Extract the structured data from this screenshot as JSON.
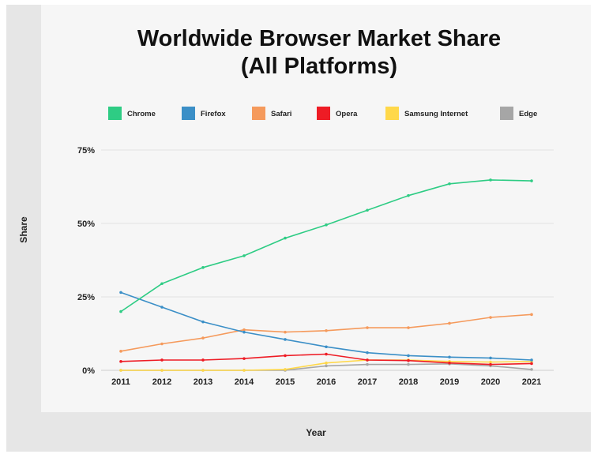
{
  "chart_data": {
    "type": "line",
    "title": [
      "Worldwide Browser Market Share",
      "(All Platforms)"
    ],
    "xlabel": "Year",
    "ylabel": "Share",
    "categories": [
      "2011",
      "2012",
      "2013",
      "2014",
      "2015",
      "2016",
      "2017",
      "2018",
      "2019",
      "2020",
      "2021"
    ],
    "y_ticks": [
      {
        "value": 0,
        "label": "0%"
      },
      {
        "value": 25,
        "label": "25%"
      },
      {
        "value": 50,
        "label": "50%"
      },
      {
        "value": 75,
        "label": "75%"
      }
    ],
    "ylim": [
      0,
      75
    ],
    "legend_position": "top",
    "series": [
      {
        "name": "Chrome",
        "color": "#2ecc84",
        "values": [
          20,
          29.5,
          35,
          39,
          45,
          49.5,
          54.5,
          59.5,
          63.5,
          64.8,
          64.5
        ]
      },
      {
        "name": "Firefox",
        "color": "#3b8fc7",
        "values": [
          26.5,
          21.5,
          16.5,
          13,
          10.5,
          8,
          6,
          5,
          4.5,
          4.2,
          3.5
        ]
      },
      {
        "name": "Safari",
        "color": "#f59a5c",
        "values": [
          6.5,
          9,
          11,
          13.8,
          13,
          13.5,
          14.5,
          14.5,
          16,
          18,
          19
        ]
      },
      {
        "name": "Opera",
        "color": "#ee1c25",
        "values": [
          3,
          3.5,
          3.5,
          4,
          5,
          5.5,
          3.5,
          3.3,
          2.5,
          2,
          2.3
        ]
      },
      {
        "name": "Samsung Internet",
        "color": "#ffd84a",
        "values": [
          0,
          0,
          0,
          0,
          0.3,
          2.5,
          3.5,
          3.5,
          3,
          2.8,
          3
        ]
      },
      {
        "name": "Edge",
        "color": "#a6a6a6",
        "values": [
          0,
          0,
          0,
          0,
          0,
          1.5,
          2,
          2,
          2.2,
          1.5,
          0.3
        ]
      }
    ]
  }
}
